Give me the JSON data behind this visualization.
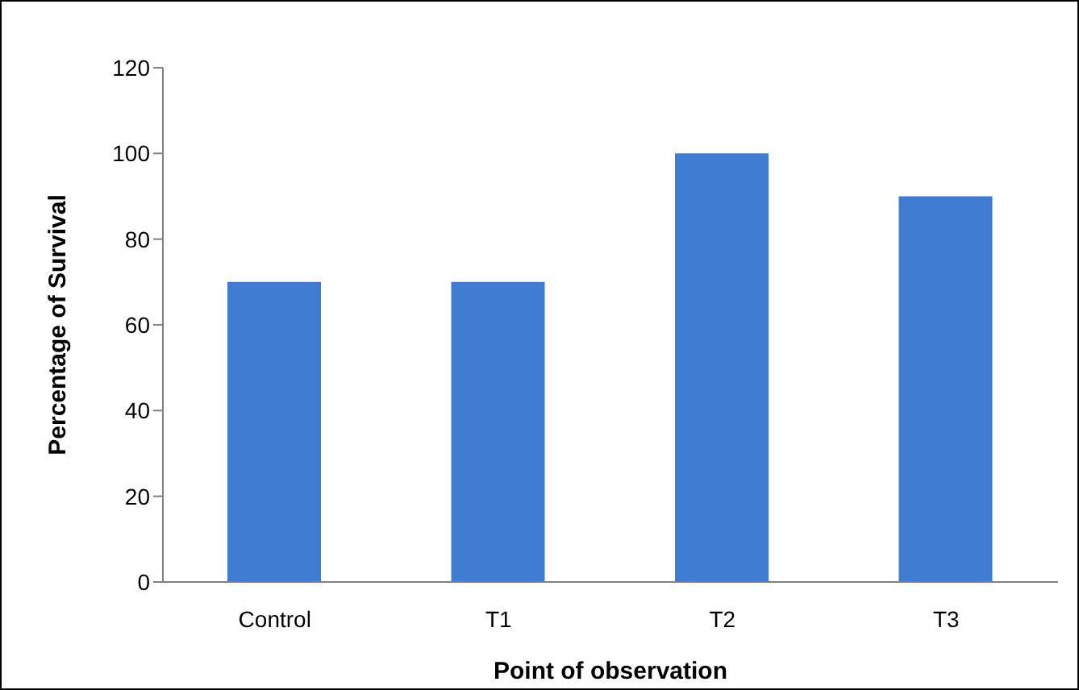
{
  "chart_data": {
    "type": "bar",
    "xlabel": "Point of observation",
    "ylabel": "Percentage of Survival",
    "categories": [
      "Control",
      "T1",
      "T2",
      "T3"
    ],
    "values": [
      70,
      70,
      100,
      90
    ],
    "color": "#3f7bd1",
    "ylim": [
      0,
      120
    ],
    "yticks": [
      0,
      20,
      40,
      60,
      80,
      100,
      120
    ],
    "grid": false,
    "legend": false
  }
}
